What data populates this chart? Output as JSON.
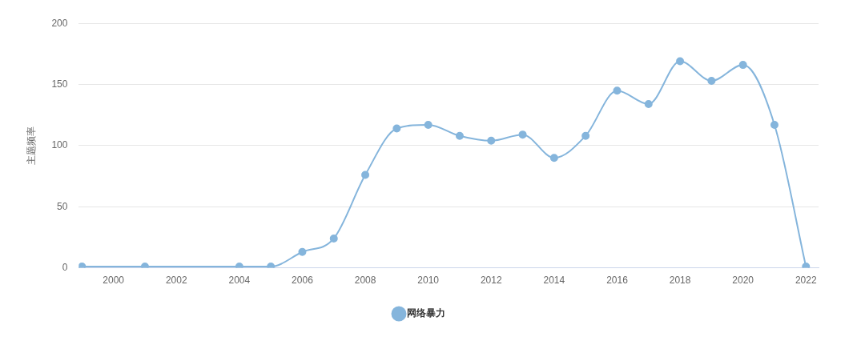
{
  "chart_data": {
    "type": "line",
    "ylabel": "主题频率",
    "x": [
      1999,
      2001,
      2004,
      2005,
      2006,
      2007,
      2008,
      2009,
      2010,
      2011,
      2012,
      2013,
      2014,
      2015,
      2016,
      2017,
      2018,
      2019,
      2020,
      2021,
      2022
    ],
    "series": [
      {
        "name": "网络暴力",
        "color": "#85b5dc",
        "values": [
          1,
          1,
          1,
          1,
          13,
          24,
          76,
          114,
          117,
          108,
          104,
          109,
          90,
          108,
          145,
          134,
          169,
          153,
          166,
          117,
          1
        ]
      }
    ],
    "xlim": [
      1998.9,
      2022.4
    ],
    "xticks": [
      2000,
      2002,
      2004,
      2006,
      2008,
      2010,
      2012,
      2014,
      2016,
      2018,
      2020,
      2022
    ],
    "ylim": [
      0,
      200
    ],
    "yticks": [
      0,
      50,
      100,
      150,
      200
    ],
    "grid": "y",
    "legend": "bottom",
    "marker": "circle",
    "line_style": "solid"
  }
}
